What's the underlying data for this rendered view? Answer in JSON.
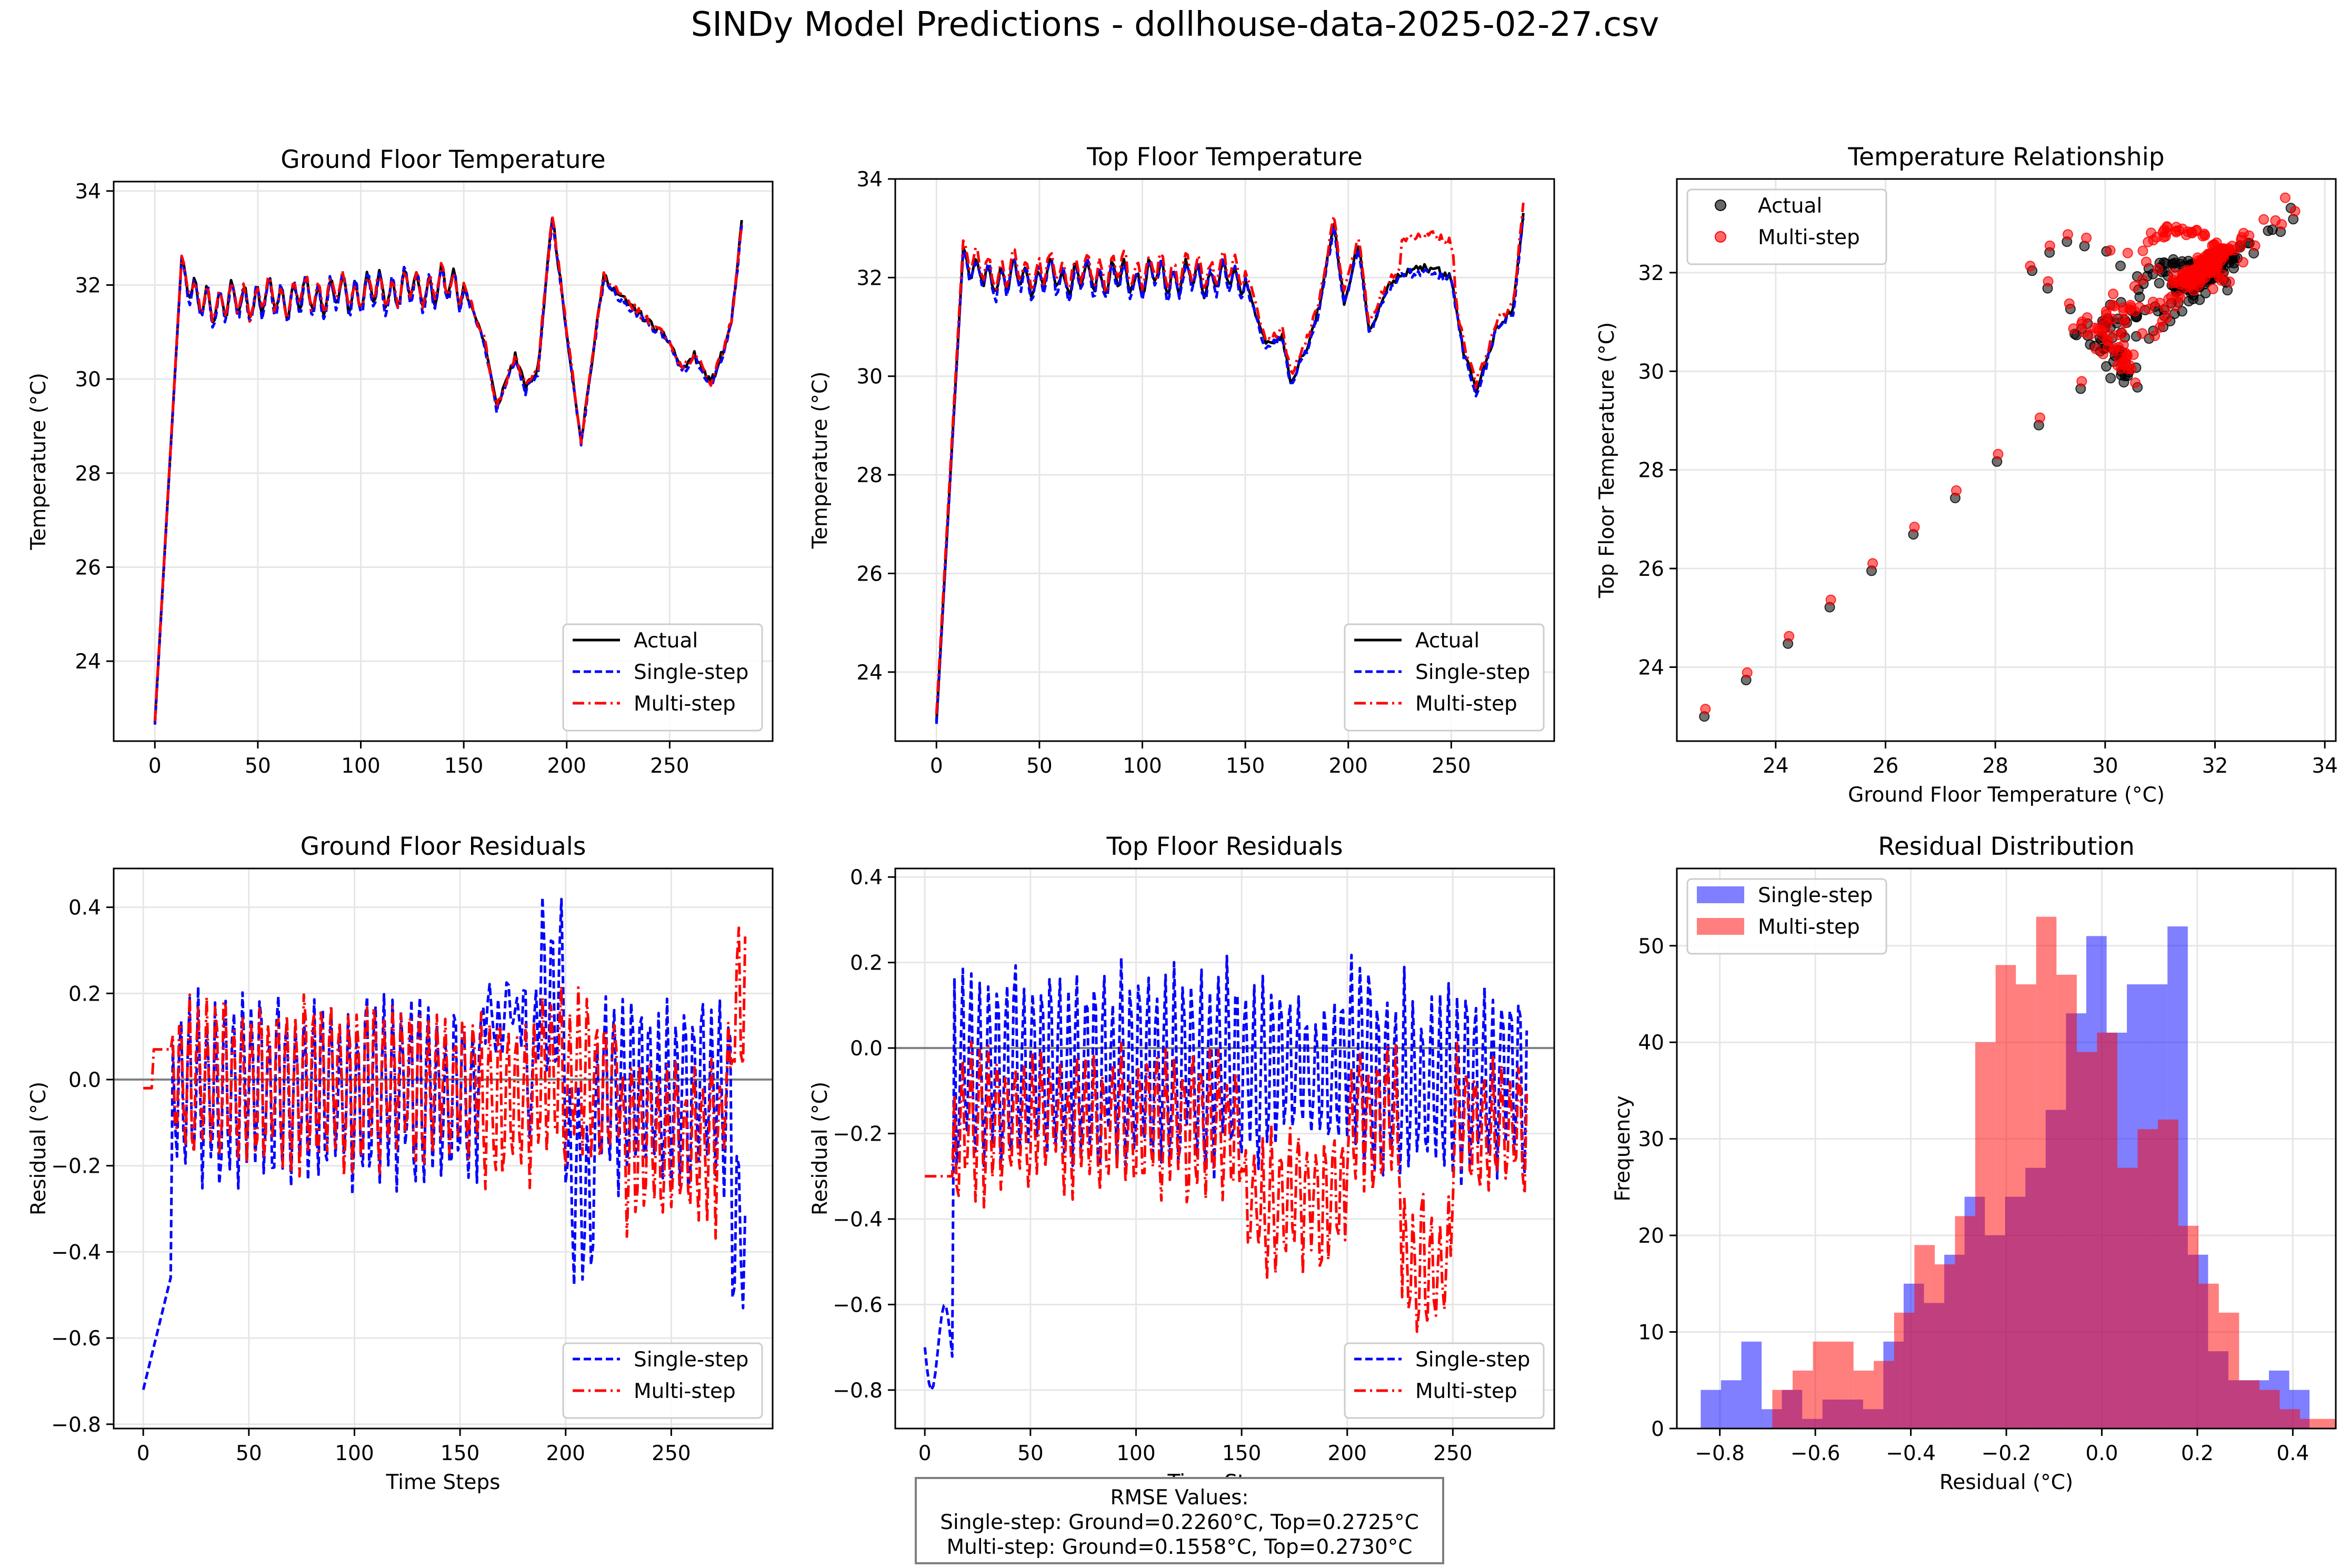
{
  "suptitle": "SINDy Model Predictions - dollhouse-data-2025-02-27.csv",
  "rmse": {
    "title": "RMSE Values:",
    "single": "Single-step: Ground=0.2260°C, Top=0.2725°C",
    "multi": "Multi-step: Ground=0.1558°C, Top=0.2730°C"
  },
  "colors": {
    "actual": "#000000",
    "single": "#0000ff",
    "multi": "#ff0000",
    "grid": "#e6e6e6",
    "zero_line": "#808080"
  },
  "chart_data": [
    {
      "id": "ground_temp",
      "type": "line",
      "title": "Ground Floor Temperature",
      "xlabel": "",
      "ylabel": "Temperature (°C)",
      "xlim": [
        -20,
        300
      ],
      "ylim": [
        22.3,
        34.2
      ],
      "xticks": [
        0,
        50,
        100,
        150,
        200,
        250
      ],
      "yticks": [
        24,
        26,
        28,
        30,
        32,
        34
      ],
      "legend": "lower right",
      "series": [
        {
          "name": "Actual",
          "style": "solid",
          "color": "#000000",
          "generator": "ground_actual"
        },
        {
          "name": "Single-step",
          "style": "dashed",
          "color": "#0000ff",
          "generator": "ground_single"
        },
        {
          "name": "Multi-step",
          "style": "dashdot",
          "color": "#ff0000",
          "generator": "ground_multi"
        }
      ],
      "keypoints": [
        [
          0,
          22.7
        ],
        [
          13,
          32.6
        ],
        [
          20,
          31.6
        ],
        [
          150,
          32.0
        ],
        [
          160,
          30.8
        ],
        [
          166,
          29.4
        ],
        [
          175,
          30.5
        ],
        [
          180,
          29.8
        ],
        [
          186,
          30.2
        ],
        [
          193,
          33.5
        ],
        [
          200,
          31.0
        ],
        [
          207,
          28.7
        ],
        [
          218,
          32.2
        ],
        [
          225,
          31.8
        ],
        [
          235,
          31.4
        ],
        [
          250,
          30.8
        ],
        [
          256,
          30.2
        ],
        [
          262,
          30.5
        ],
        [
          270,
          29.9
        ],
        [
          276,
          30.6
        ],
        [
          280,
          31.2
        ],
        [
          285,
          33.3
        ]
      ]
    },
    {
      "id": "top_temp",
      "type": "line",
      "title": "Top Floor Temperature",
      "xlabel": "",
      "ylabel": "Temperature (°C)",
      "xlim": [
        -20,
        300
      ],
      "ylim": [
        22.6,
        34.0
      ],
      "xticks": [
        0,
        50,
        100,
        150,
        200,
        250
      ],
      "yticks": [
        24,
        26,
        28,
        30,
        32,
        34
      ],
      "legend": "lower right",
      "series": [
        {
          "name": "Actual",
          "style": "solid",
          "color": "#000000",
          "generator": "top_actual"
        },
        {
          "name": "Single-step",
          "style": "dashed",
          "color": "#0000ff",
          "generator": "top_single"
        },
        {
          "name": "Multi-step",
          "style": "dashdot",
          "color": "#ff0000",
          "generator": "top_multi"
        }
      ],
      "keypoints": [
        [
          0,
          23.0
        ],
        [
          13,
          32.6
        ],
        [
          20,
          32.0
        ],
        [
          150,
          32.0
        ],
        [
          160,
          30.6
        ],
        [
          168,
          30.8
        ],
        [
          172,
          29.9
        ],
        [
          180,
          30.6
        ],
        [
          186,
          31.4
        ],
        [
          193,
          33.1
        ],
        [
          198,
          31.5
        ],
        [
          205,
          32.7
        ],
        [
          210,
          30.9
        ],
        [
          218,
          31.7
        ],
        [
          225,
          32.1
        ],
        [
          240,
          32.2
        ],
        [
          250,
          32.0
        ],
        [
          256,
          30.5
        ],
        [
          262,
          29.7
        ],
        [
          268,
          30.4
        ],
        [
          272,
          31.0
        ],
        [
          280,
          31.3
        ],
        [
          285,
          33.3
        ]
      ]
    },
    {
      "id": "relationship",
      "type": "scatter",
      "title": "Temperature Relationship",
      "xlabel": "Ground Floor Temperature (°C)",
      "ylabel": "Top Floor Temperature (°C)",
      "xlim": [
        22.2,
        34.2
      ],
      "ylim": [
        22.5,
        33.9
      ],
      "xticks": [
        24,
        26,
        28,
        30,
        32,
        34
      ],
      "yticks": [
        24,
        26,
        28,
        30,
        32
      ],
      "legend": "upper left",
      "series": [
        {
          "name": "Actual",
          "color": "#000000"
        },
        {
          "name": "Multi-step",
          "color": "#ff0000"
        }
      ]
    },
    {
      "id": "ground_resid",
      "type": "line",
      "title": "Ground Floor Residuals",
      "xlabel": "Time Steps",
      "ylabel": "Residual (°C)",
      "xlim": [
        -14,
        298
      ],
      "ylim": [
        -0.81,
        0.49
      ],
      "xticks": [
        0,
        50,
        100,
        150,
        200,
        250
      ],
      "yticks": [
        -0.8,
        -0.6,
        -0.4,
        -0.2,
        0.0,
        0.2,
        0.4
      ],
      "legend": "lower right",
      "series": [
        {
          "name": "Single-step",
          "style": "dashed",
          "color": "#0000ff",
          "generator": "ground_resid_single"
        },
        {
          "name": "Multi-step",
          "style": "dashdot",
          "color": "#ff0000",
          "generator": "ground_resid_multi"
        }
      ]
    },
    {
      "id": "top_resid",
      "type": "line",
      "title": "Top Floor Residuals",
      "xlabel": "Time Steps",
      "ylabel": "Residual (°C)",
      "xlim": [
        -14,
        298
      ],
      "ylim": [
        -0.89,
        0.42
      ],
      "xticks": [
        0,
        50,
        100,
        150,
        200,
        250
      ],
      "yticks": [
        -0.8,
        -0.6,
        -0.4,
        -0.2,
        0.0,
        0.2,
        0.4
      ],
      "legend": "lower right",
      "series": [
        {
          "name": "Single-step",
          "style": "dashed",
          "color": "#0000ff",
          "generator": "top_resid_single"
        },
        {
          "name": "Multi-step",
          "style": "dashdot",
          "color": "#ff0000",
          "generator": "top_resid_multi"
        }
      ]
    },
    {
      "id": "resid_dist",
      "type": "bar",
      "title": "Residual Distribution",
      "xlabel": "Residual (°C)",
      "ylabel": "Frequency",
      "xlim": [
        -0.89,
        0.49
      ],
      "ylim": [
        0,
        58
      ],
      "xticks": [
        -0.8,
        -0.6,
        -0.4,
        -0.2,
        0.0,
        0.2,
        0.4
      ],
      "yticks": [
        0,
        10,
        20,
        30,
        40,
        50
      ],
      "legend": "upper left",
      "series": [
        {
          "name": "Single-step",
          "color": "#0000ff",
          "alpha": 0.5,
          "bins_start": -0.84,
          "bin_width": 0.0425,
          "values": [
            4,
            5,
            9,
            2,
            4,
            1,
            3,
            3,
            2,
            9,
            15,
            13,
            18,
            24,
            20,
            24,
            27,
            33,
            43,
            51,
            41,
            46,
            46,
            52,
            18,
            8,
            5,
            5,
            6,
            4
          ]
        },
        {
          "name": "Multi-step",
          "color": "#ff0000",
          "alpha": 0.5,
          "bins_start": -0.69,
          "bin_width": 0.0425,
          "values": [
            4,
            6,
            9,
            9,
            6,
            7,
            12,
            19,
            17,
            22,
            40,
            48,
            46,
            53,
            47,
            39,
            41,
            27,
            31,
            32,
            21,
            15,
            12,
            5,
            4,
            2,
            1,
            1
          ]
        }
      ]
    }
  ]
}
